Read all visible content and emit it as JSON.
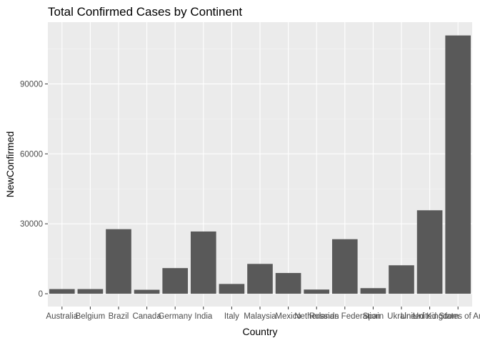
{
  "chart_data": {
    "type": "bar",
    "title": "Total Confirmed Cases by Continent",
    "xlabel": "Country",
    "ylabel": "NewConfirmed",
    "categories": [
      "Australia",
      "Belgium",
      "Brazil",
      "Canada",
      "Germany",
      "India",
      "Italy",
      "Malaysia",
      "Mexico",
      "Netherlands",
      "Russian Federation",
      "Spain",
      "Ukraine",
      "United Kingdom",
      "United States of America"
    ],
    "values": [
      2000,
      2000,
      27700,
      1700,
      11000,
      26700,
      4200,
      12800,
      8900,
      1800,
      23400,
      2400,
      12200,
      35800,
      110800
    ],
    "yticks": [
      0,
      30000,
      60000,
      90000
    ],
    "ylim": [
      -5500,
      116500
    ],
    "grid": true,
    "legend": "none",
    "colors": {
      "bar": "#595959",
      "panel": "#ebebeb",
      "grid_major": "#ffffff",
      "grid_minor": "#f5f5f5"
    }
  }
}
